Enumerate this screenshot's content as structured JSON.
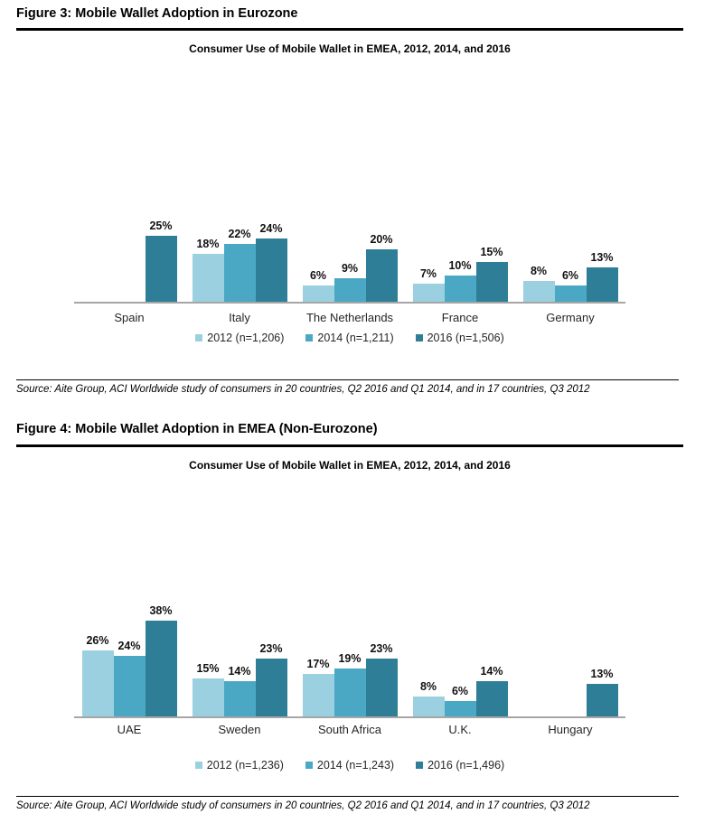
{
  "figure3": {
    "heading": "Figure 3: Mobile Wallet Adoption in Eurozone",
    "source": "Source: Aite Group, ACI Worldwide study of consumers in 20 countries, Q2 2016 and Q1 2014, and in 17 countries, Q3 2012"
  },
  "figure4": {
    "heading": "Figure 4: Mobile Wallet Adoption in EMEA (Non-Eurozone)",
    "source": "Source: Aite Group, ACI Worldwide study of consumers in 20 countries, Q2 2016 and Q1 2014, and in 17 countries, Q3 2012"
  },
  "colors": {
    "series_2012": "#9ad0e0",
    "series_2014": "#4aa8c4",
    "series_2016": "#2e7e98",
    "axis_line": "#a6a6a6",
    "label_text": "#111111"
  },
  "chart_data": [
    {
      "type": "bar",
      "title": "Consumer Use of Mobile Wallet in EMEA, 2012, 2014, and 2016",
      "categories": [
        "Spain",
        "Italy",
        "The Netherlands",
        "France",
        "Germany"
      ],
      "series": [
        {
          "name": "2012 (n=1,206)",
          "values": [
            null,
            18,
            6,
            7,
            8
          ]
        },
        {
          "name": "2014 (n=1,211)",
          "values": [
            null,
            22,
            9,
            10,
            6
          ]
        },
        {
          "name": "2016 (n=1,506)",
          "values": [
            25,
            24,
            20,
            15,
            13
          ]
        }
      ],
      "value_format": "percent",
      "data_labels": true,
      "legend_position": "bottom",
      "xlabel": "",
      "ylabel": "",
      "ylim": [
        0,
        30
      ],
      "grid": false
    },
    {
      "type": "bar",
      "title": "Consumer Use of Mobile Wallet in EMEA, 2012, 2014, and 2016",
      "categories": [
        "UAE",
        "Sweden",
        "South Africa",
        "U.K.",
        "Hungary"
      ],
      "series": [
        {
          "name": "2012 (n=1,236)",
          "values": [
            26,
            15,
            17,
            8,
            null
          ]
        },
        {
          "name": "2014 (n=1,243)",
          "values": [
            24,
            14,
            19,
            6,
            null
          ]
        },
        {
          "name": "2016 (n=1,496)",
          "values": [
            38,
            23,
            23,
            14,
            13
          ]
        }
      ],
      "value_format": "percent",
      "data_labels": true,
      "legend_position": "bottom",
      "xlabel": "",
      "ylabel": "",
      "ylim": [
        0,
        40
      ],
      "grid": false
    }
  ]
}
